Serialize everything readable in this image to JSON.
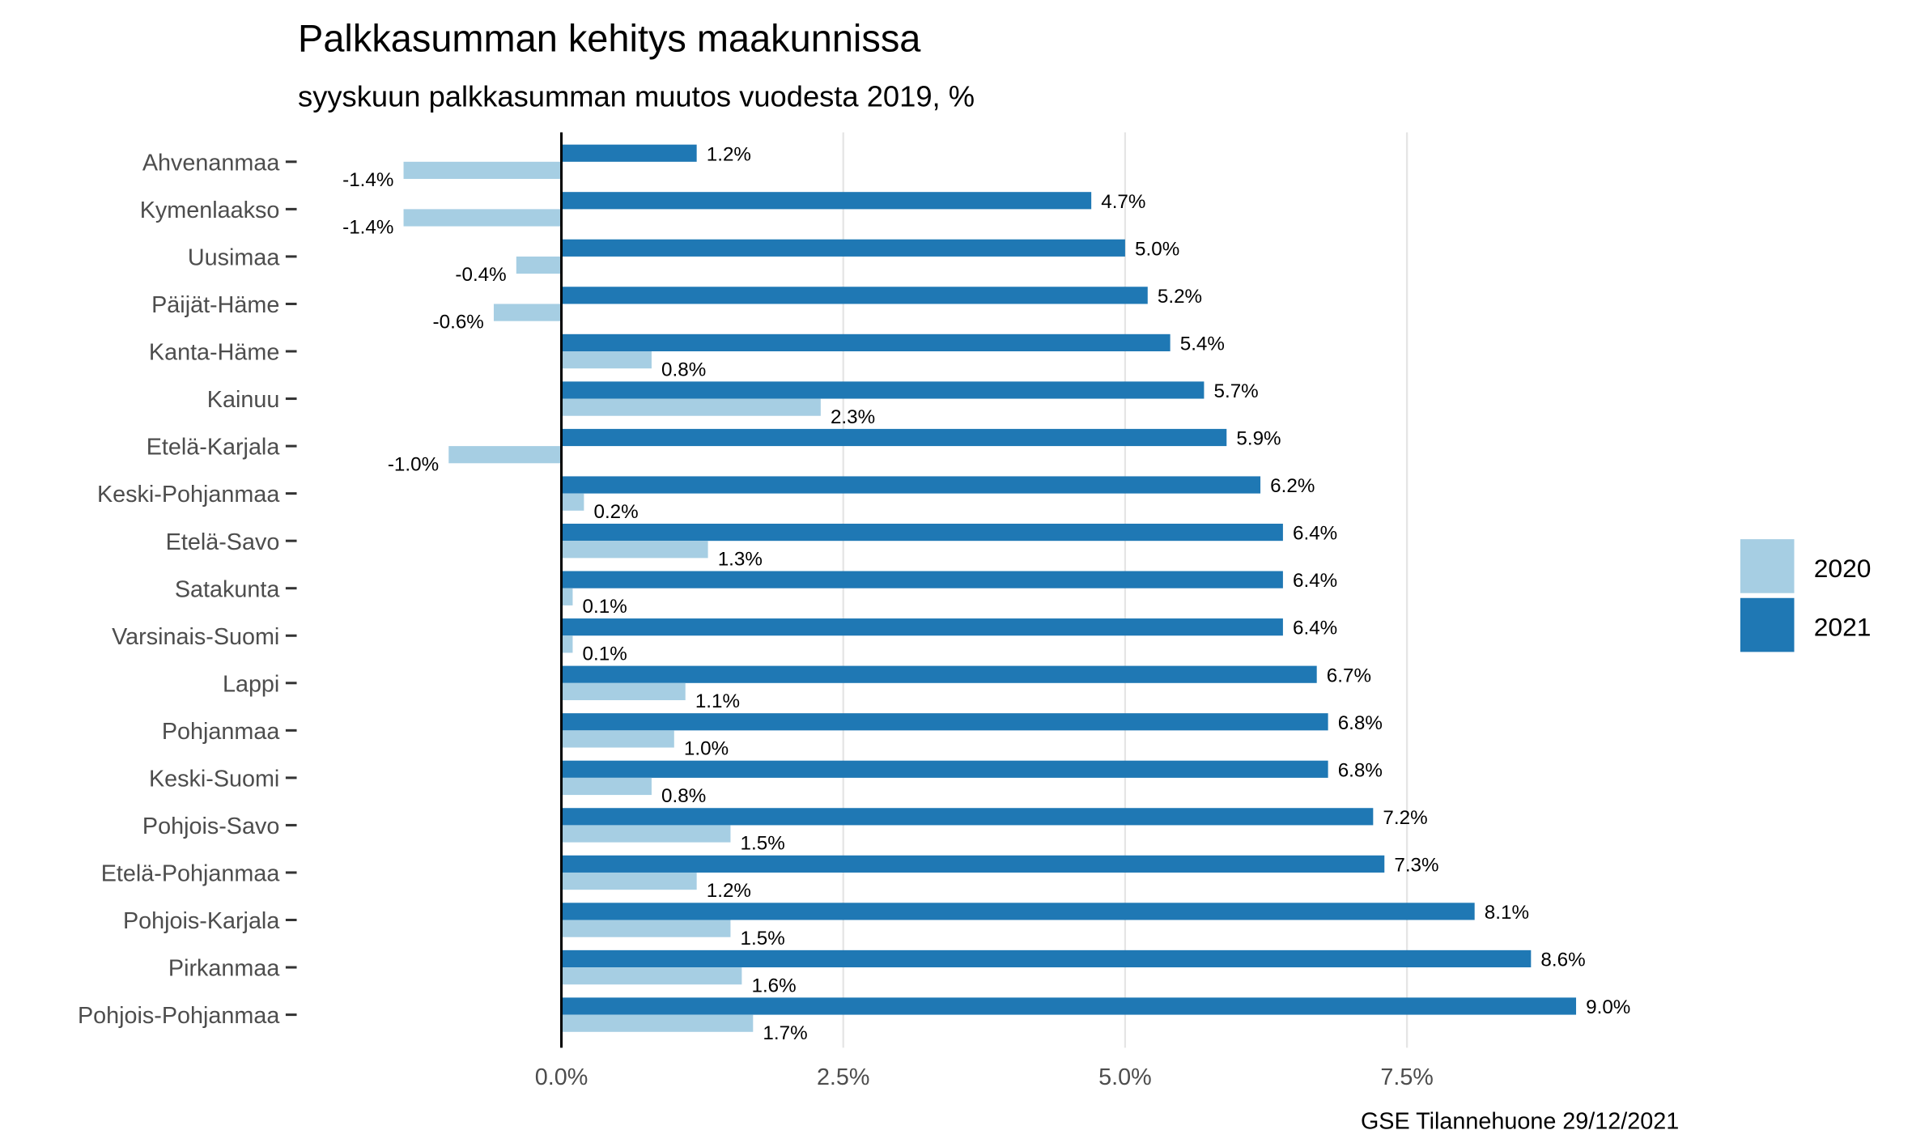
{
  "chart_data": {
    "type": "bar",
    "orientation": "horizontal",
    "title": "Palkkasumman kehitys maakunnissa",
    "subtitle": "syyskuun palkkasumman muutos vuodesta 2019, %",
    "caption": "GSE Tilannehuone 29/12/2021",
    "xlabel": "",
    "ylabel": "",
    "xlim": [
      -1.6,
      9.2
    ],
    "xticks": [
      0,
      2.5,
      5,
      7.5
    ],
    "xtick_labels": [
      "0.0%",
      "2.5%",
      "5.0%",
      "7.5%"
    ],
    "grid": true,
    "legend_position": "right",
    "categories": [
      "Ahvenanmaa",
      "Kymenlaakso",
      "Uusimaa",
      "Päijät-Häme",
      "Kanta-Häme",
      "Kainuu",
      "Etelä-Karjala",
      "Keski-Pohjanmaa",
      "Etelä-Savo",
      "Satakunta",
      "Varsinais-Suomi",
      "Lappi",
      "Pohjanmaa",
      "Keski-Suomi",
      "Pohjois-Savo",
      "Etelä-Pohjanmaa",
      "Pohjois-Karjala",
      "Pirkanmaa",
      "Pohjois-Pohjanmaa"
    ],
    "series": [
      {
        "name": "2020",
        "color": "#a6cee3",
        "values": [
          -1.4,
          -1.4,
          -0.4,
          -0.6,
          0.8,
          2.3,
          -1.0,
          0.2,
          1.3,
          0.1,
          0.1,
          1.1,
          1.0,
          0.8,
          1.5,
          1.2,
          1.5,
          1.6,
          1.7
        ],
        "labels": [
          "-1.4%",
          "-1.4%",
          "-0.4%",
          "-0.6%",
          "0.8%",
          "2.3%",
          "-1.0%",
          "0.2%",
          "1.3%",
          "0.1%",
          "0.1%",
          "1.1%",
          "1.0%",
          "0.8%",
          "1.5%",
          "1.2%",
          "1.5%",
          "1.6%",
          "1.7%"
        ]
      },
      {
        "name": "2021",
        "color": "#1f78b4",
        "values": [
          1.2,
          4.7,
          5.0,
          5.2,
          5.4,
          5.7,
          5.9,
          6.2,
          6.4,
          6.4,
          6.4,
          6.7,
          6.8,
          6.8,
          7.2,
          7.3,
          8.1,
          8.6,
          9.0
        ],
        "labels": [
          "1.2%",
          "4.7%",
          "5.0%",
          "5.2%",
          "5.4%",
          "5.7%",
          "5.9%",
          "6.2%",
          "6.4%",
          "6.4%",
          "6.4%",
          "6.7%",
          "6.8%",
          "6.8%",
          "7.2%",
          "7.3%",
          "8.1%",
          "8.6%",
          "9.0%"
        ]
      }
    ]
  }
}
